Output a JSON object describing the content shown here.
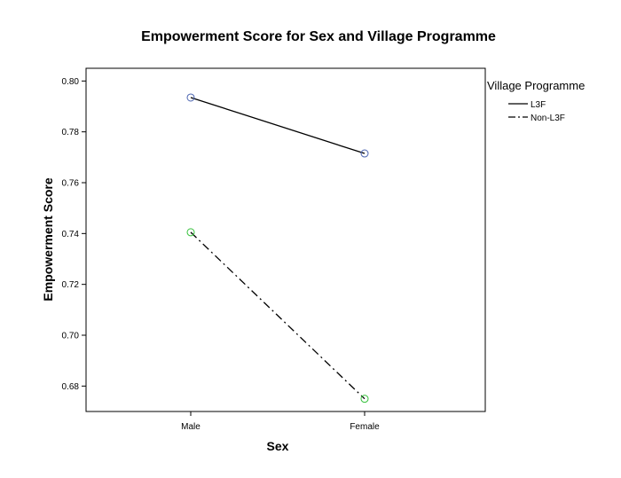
{
  "chart_data": {
    "type": "line",
    "title": "Empowerment Score for Sex and Village Programme",
    "xlabel": "Sex",
    "ylabel": "Empowerment Score",
    "categories": [
      "Male",
      "Female"
    ],
    "ylim": [
      0.67,
      0.805
    ],
    "yticks": [
      "0.68",
      "0.70",
      "0.72",
      "0.74",
      "0.76",
      "0.78",
      "0.80"
    ],
    "grid": false,
    "legend": {
      "title": "Village Programme",
      "position": "right"
    },
    "series": [
      {
        "name": "L3F",
        "values": [
          0.7935,
          0.7715
        ],
        "line_style": "solid",
        "marker_color": "#4a63b0"
      },
      {
        "name": "Non-L3F",
        "values": [
          0.7405,
          0.675
        ],
        "line_style": "dash-dot",
        "marker_color": "#35c13b"
      }
    ]
  }
}
